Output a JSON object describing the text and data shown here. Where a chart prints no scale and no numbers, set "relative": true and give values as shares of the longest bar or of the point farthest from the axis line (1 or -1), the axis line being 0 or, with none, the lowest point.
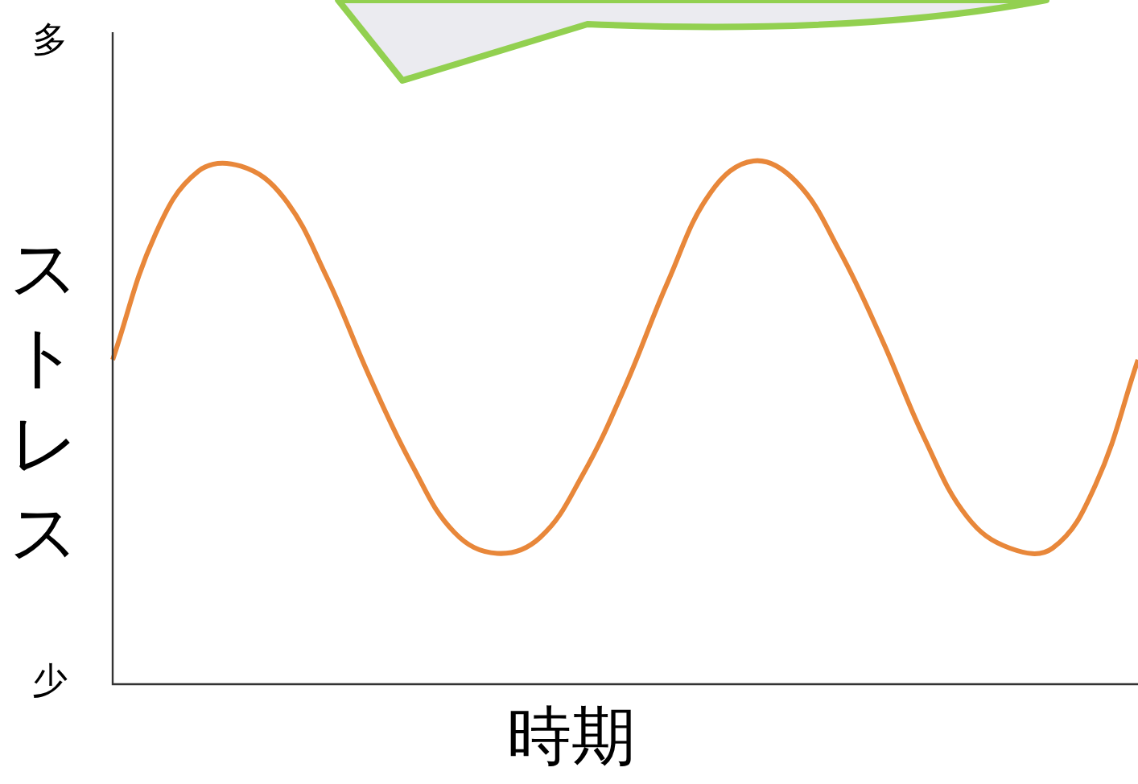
{
  "chart_data": {
    "type": "line",
    "relative": true,
    "ylabel": "ストレス",
    "xlabel": "時期",
    "annotations": [
      "多",
      "少"
    ],
    "categories": [
      null,
      null,
      null,
      null,
      null,
      null,
      null,
      null,
      null,
      null,
      null,
      null,
      null,
      null,
      null,
      null,
      null,
      null,
      null,
      null,
      null,
      null,
      null,
      null,
      null
    ],
    "series": [
      {
        "color": "#e8873a",
        "values": [
          0.62,
          0.86,
          0.98,
          0.99,
          0.93,
          0.78,
          0.59,
          0.42,
          0.29,
          0.25,
          0.28,
          0.4,
          0.57,
          0.77,
          0.94,
          1,
          0.96,
          0.83,
          0.66,
          0.47,
          0.32,
          0.26,
          0.26,
          0.38,
          0.62
        ]
      }
    ],
    "legend": false,
    "marker": "none",
    "line_style": "solid"
  }
}
